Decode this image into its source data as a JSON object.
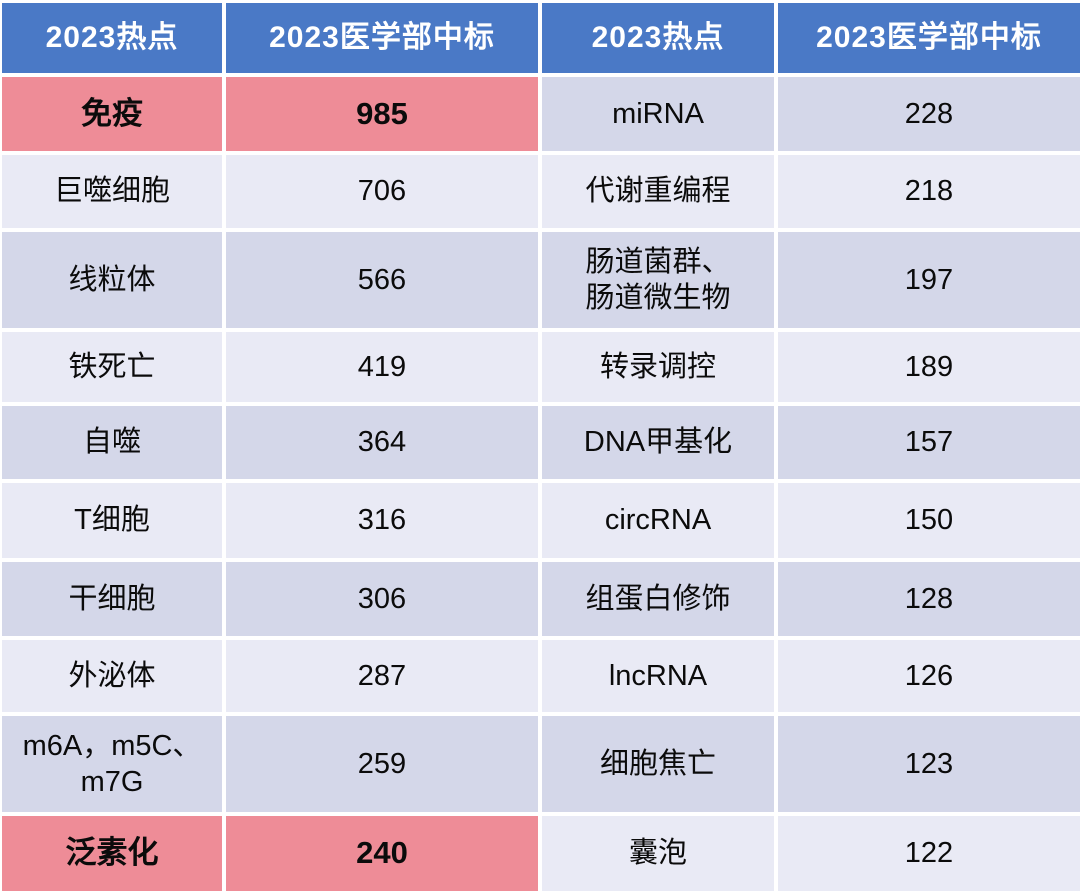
{
  "table": {
    "columns": [
      "2023热点",
      "2023医学部中标",
      "2023热点",
      "2023医学部中标"
    ],
    "rows": [
      {
        "left_topic": "免疫",
        "left_value": "985",
        "right_topic": "miRNA",
        "right_value": "228"
      },
      {
        "left_topic": "巨噬细胞",
        "left_value": "706",
        "right_topic": "代谢重编程",
        "right_value": "218"
      },
      {
        "left_topic": "线粒体",
        "left_value": "566",
        "right_topic": "肠道菌群、\n肠道微生物",
        "right_value": "197"
      },
      {
        "left_topic": "铁死亡",
        "left_value": "419",
        "right_topic": "转录调控",
        "right_value": "189"
      },
      {
        "left_topic": "自噬",
        "left_value": "364",
        "right_topic": "DNA甲基化",
        "right_value": "157"
      },
      {
        "left_topic": "T细胞",
        "left_value": "316",
        "right_topic": "circRNA",
        "right_value": "150"
      },
      {
        "left_topic": "干细胞",
        "left_value": "306",
        "right_topic": "组蛋白修饰",
        "right_value": "128"
      },
      {
        "left_topic": "外泌体",
        "left_value": "287",
        "right_topic": "lncRNA",
        "right_value": "126"
      },
      {
        "left_topic": "m6A，m5C、\nm7G",
        "left_value": "259",
        "right_topic": "细胞焦亡",
        "right_value": "123"
      },
      {
        "left_topic": "泛素化",
        "left_value": "240",
        "right_topic": "囊泡",
        "right_value": "122"
      }
    ],
    "highlighted_topics": [
      "免疫",
      "泛素化"
    ]
  },
  "colors": {
    "header_bg": "#4a79c6",
    "header_text": "#ffffff",
    "highlight_bg": "#ee8c97",
    "row_dark": "#d4d7e9",
    "row_light": "#e9eaf5",
    "body_text": "#0b0b0b"
  },
  "chart_data": {
    "type": "table",
    "columns": [
      "2023热点",
      "2023医学部中标",
      "2023热点",
      "2023医学部中标"
    ],
    "rows": [
      [
        "免疫",
        985,
        "miRNA",
        228
      ],
      [
        "巨噬细胞",
        706,
        "代谢重编程",
        218
      ],
      [
        "线粒体",
        566,
        "肠道菌群、肠道微生物",
        197
      ],
      [
        "铁死亡",
        419,
        "转录调控",
        189
      ],
      [
        "自噬",
        364,
        "DNA甲基化",
        157
      ],
      [
        "T细胞",
        316,
        "circRNA",
        150
      ],
      [
        "干细胞",
        306,
        "组蛋白修饰",
        128
      ],
      [
        "外泌体",
        287,
        "lncRNA",
        126
      ],
      [
        "m6A，m5C、m7G",
        259,
        "细胞焦亡",
        123
      ],
      [
        "泛素化",
        240,
        "囊泡",
        122
      ]
    ],
    "highlighted_rows": [
      "免疫",
      "泛素化"
    ],
    "layout": "two side-by-side topic/count panes sharing one grid; blue header, alternating lavender rows, pink highlight rows"
  }
}
